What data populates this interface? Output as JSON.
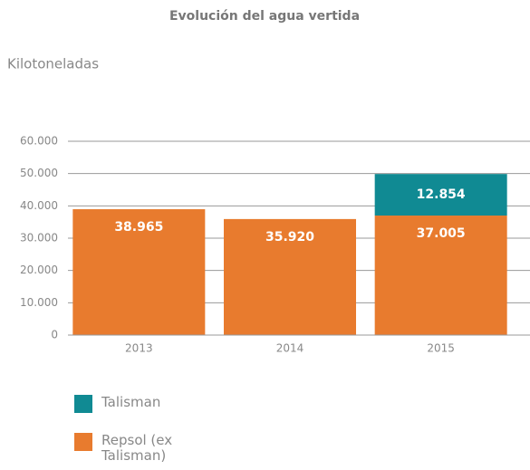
{
  "chart_data": {
    "type": "stacked_bar",
    "title": "Evolución del agua vertida",
    "y_label": "Kilotoneladas",
    "categories": [
      "2013",
      "2014",
      "2015"
    ],
    "series": [
      {
        "name": "Repsol (ex Talisman)",
        "color": "#e87b2e",
        "values": [
          38965,
          35920,
          37005
        ],
        "value_labels": [
          "38.965",
          "35.920",
          "37.005"
        ]
      },
      {
        "name": "Talisman",
        "color": "#108a93",
        "values": [
          null,
          null,
          12854
        ],
        "value_labels": [
          null,
          null,
          "12.854"
        ]
      }
    ],
    "ylim": [
      0,
      60000
    ],
    "yticks": [
      0,
      {
        "value": 10000,
        "label": "10.000"
      },
      {
        "value": 20000,
        "label": "20.000"
      },
      {
        "value": 30000,
        "label": "30.000"
      },
      {
        "value": 40000,
        "label": "40.000"
      },
      {
        "value": 50000,
        "label": "50.000"
      },
      {
        "value": 60000,
        "label": "60.000"
      }
    ],
    "grid": true
  }
}
